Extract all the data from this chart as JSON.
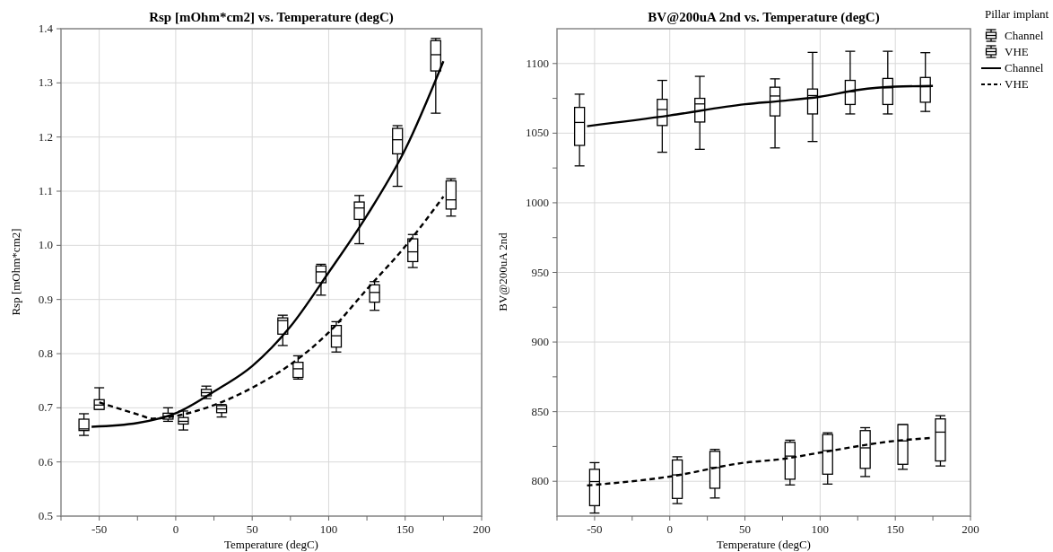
{
  "chart_data": [
    {
      "type": "box",
      "title": "Rsp [mOhm*cm2] vs. Temperature (degC)",
      "xlabel": "Temperature (degC)",
      "ylabel": "Rsp [mOhm*cm2]",
      "xlim": [
        -75,
        200
      ],
      "xticks": [
        {
          "value": -75,
          "label": null
        },
        -50,
        {
          "value": -25,
          "label": null
        },
        0,
        {
          "value": 25,
          "label": null
        },
        50,
        {
          "value": 75,
          "label": null
        },
        100,
        {
          "value": 125,
          "label": null
        },
        150,
        {
          "value": 175,
          "label": null
        },
        200
      ],
      "ylim": [
        0.5,
        1.4
      ],
      "yticks": [
        {
          "value": 0.5,
          "label": "0.5"
        },
        {
          "value": 0.6,
          "label": "0.6"
        },
        {
          "value": 0.7,
          "label": "0.7"
        },
        {
          "value": 0.8,
          "label": "0.8"
        },
        {
          "value": 0.9,
          "label": "0.9"
        },
        {
          "value": 1.0,
          "label": "1.0"
        },
        {
          "value": 1.1,
          "label": "1.1"
        },
        {
          "value": 1.2,
          "label": "1.2"
        },
        {
          "value": 1.3,
          "label": "1.3"
        },
        {
          "value": 1.4,
          "label": "1.4"
        }
      ],
      "grid": true,
      "series": [
        {
          "color": "#000000",
          "x": [
            -60,
            -5,
            20,
            70,
            95,
            120,
            145,
            170
          ],
          "boxes": [
            {
              "low": 0.649,
              "q1": 0.658,
              "median": 0.661,
              "q3": 0.679,
              "high": 0.689
            },
            {
              "low": 0.675,
              "q1": 0.679,
              "median": 0.684,
              "q3": 0.69,
              "high": 0.7
            },
            {
              "low": 0.717,
              "q1": 0.722,
              "median": 0.728,
              "q3": 0.734,
              "high": 0.74
            },
            {
              "low": 0.815,
              "q1": 0.836,
              "median": 0.861,
              "q3": 0.866,
              "high": 0.871
            },
            {
              "low": 0.908,
              "q1": 0.931,
              "median": 0.951,
              "q3": 0.962,
              "high": 0.965
            },
            {
              "low": 1.003,
              "q1": 1.048,
              "median": 1.069,
              "q3": 1.08,
              "high": 1.092
            },
            {
              "low": 1.109,
              "q1": 1.169,
              "median": 1.195,
              "q3": 1.216,
              "high": 1.221
            },
            {
              "low": 1.244,
              "q1": 1.322,
              "median": 1.352,
              "q3": 1.378,
              "high": 1.382
            }
          ]
        },
        {
          "color": "#000000",
          "x": [
            -50,
            5,
            30,
            80,
            105,
            130,
            155,
            180
          ],
          "boxes": [
            {
              "low": 0.697,
              "q1": 0.697,
              "median": 0.705,
              "q3": 0.715,
              "high": 0.737
            },
            {
              "low": 0.659,
              "q1": 0.67,
              "median": 0.675,
              "q3": 0.682,
              "high": 0.694
            },
            {
              "low": 0.683,
              "q1": 0.691,
              "median": 0.698,
              "q3": 0.704,
              "high": 0.706
            },
            {
              "low": 0.753,
              "q1": 0.756,
              "median": 0.772,
              "q3": 0.784,
              "high": 0.796
            },
            {
              "low": 0.803,
              "q1": 0.812,
              "median": 0.833,
              "q3": 0.852,
              "high": 0.859
            },
            {
              "low": 0.88,
              "q1": 0.895,
              "median": 0.913,
              "q3": 0.927,
              "high": 0.933
            },
            {
              "low": 0.959,
              "q1": 0.97,
              "median": 0.988,
              "q3": 1.012,
              "high": 1.02
            },
            {
              "low": 1.054,
              "q1": 1.067,
              "median": 1.084,
              "q3": 1.119,
              "high": 1.123
            }
          ]
        },
        {
          "type": "line",
          "color": "#000000",
          "line_style": "solid",
          "x": [
            -55,
            -25,
            0,
            25,
            50,
            75,
            100,
            125,
            150,
            175
          ],
          "values": [
            0.665,
            0.672,
            0.69,
            0.73,
            0.777,
            0.85,
            0.95,
            1.055,
            1.177,
            1.34
          ]
        },
        {
          "type": "line",
          "color": "#000000",
          "line_style": "dashed",
          "x": [
            -50,
            -25,
            -15,
            0,
            25,
            50,
            75,
            100,
            125,
            150,
            175
          ],
          "values": [
            0.71,
            0.688,
            0.68,
            0.685,
            0.705,
            0.737,
            0.78,
            0.839,
            0.919,
            0.998,
            1.09
          ]
        }
      ]
    },
    {
      "type": "box",
      "title": "BV@200uA 2nd vs. Temperature (degC)",
      "xlabel": "Temperature (degC)",
      "ylabel": "BV@200uA 2nd",
      "xlim": [
        -75,
        200
      ],
      "xticks": [
        {
          "value": -75,
          "label": null
        },
        -50,
        {
          "value": -25,
          "label": null
        },
        0,
        {
          "value": 25,
          "label": null
        },
        50,
        {
          "value": 75,
          "label": null
        },
        100,
        {
          "value": 125,
          "label": null
        },
        150,
        {
          "value": 175,
          "label": null
        },
        200
      ],
      "ylim": [
        775,
        1125
      ],
      "yticks": [
        800,
        {
          "value": 825,
          "label": null
        },
        850,
        {
          "value": 875,
          "label": null
        },
        900,
        {
          "value": 925,
          "label": null
        },
        950,
        {
          "value": 975,
          "label": null
        },
        1000,
        {
          "value": 1025,
          "label": null
        },
        1050,
        {
          "value": 1075,
          "label": null
        },
        1100
      ],
      "grid": true,
      "legend": "right",
      "legend_title": "Pillar implant",
      "series": [
        {
          "name": "Channel",
          "color": "#000000",
          "x": [
            -60,
            -5,
            20,
            70,
            95,
            120,
            145,
            170
          ],
          "boxes": [
            {
              "low": 1026.5,
              "q1": 1041.2,
              "median": 1057.7,
              "q3": 1068.5,
              "high": 1078
            },
            {
              "low": 1036.3,
              "q1": 1055.5,
              "median": 1067,
              "q3": 1074.3,
              "high": 1087.9
            },
            {
              "low": 1038.4,
              "q1": 1058,
              "median": 1071,
              "q3": 1075,
              "high": 1090.8
            },
            {
              "low": 1039.4,
              "q1": 1062.4,
              "median": 1076.7,
              "q3": 1083,
              "high": 1089
            },
            {
              "low": 1044,
              "q1": 1063.8,
              "median": 1077,
              "q3": 1081.7,
              "high": 1108
            },
            {
              "low": 1063.8,
              "q1": 1070.6,
              "median": 1079.8,
              "q3": 1087.9,
              "high": 1108.8
            },
            {
              "low": 1063.8,
              "q1": 1070.6,
              "median": 1082.6,
              "q3": 1089.3,
              "high": 1108.8
            },
            {
              "low": 1065.6,
              "q1": 1072.2,
              "median": 1083.4,
              "q3": 1090,
              "high": 1107.8
            }
          ]
        },
        {
          "name": "VHE",
          "color": "#000000",
          "x": [
            -50,
            5,
            30,
            80,
            105,
            130,
            155,
            180
          ],
          "boxes": [
            {
              "low": 777.2,
              "q1": 782.5,
              "median": 799.8,
              "q3": 808.6,
              "high": 813.4
            },
            {
              "low": 784,
              "q1": 787.7,
              "median": 804.6,
              "q3": 815.3,
              "high": 817.6
            },
            {
              "low": 788,
              "q1": 795,
              "median": 809.8,
              "q3": 821.5,
              "high": 822.9
            },
            {
              "low": 797.4,
              "q1": 801.5,
              "median": 818.1,
              "q3": 828,
              "high": 829.5
            },
            {
              "low": 798,
              "q1": 805.1,
              "median": 822,
              "q3": 833.6,
              "high": 834.8
            },
            {
              "low": 803.4,
              "q1": 809.3,
              "median": 824,
              "q3": 836.4,
              "high": 838.5
            },
            {
              "low": 808.6,
              "q1": 812.2,
              "median": 829,
              "q3": 840.7,
              "high": 840.7
            },
            {
              "low": 811,
              "q1": 814.6,
              "median": 835.3,
              "q3": 844.8,
              "high": 847.1
            }
          ]
        },
        {
          "name": "Channel",
          "type": "line",
          "color": "#000000",
          "line_style": "solid",
          "x": [
            -55,
            0,
            50,
            75,
            100,
            125,
            150,
            175
          ],
          "values": [
            1055,
            1062.7,
            1070.8,
            1073.2,
            1076.2,
            1081,
            1083.4,
            1083.9
          ]
        },
        {
          "name": "VHE",
          "type": "line",
          "color": "#000000",
          "line_style": "dashed",
          "x": [
            -55,
            0,
            50,
            75,
            100,
            150,
            175
          ],
          "values": [
            797,
            803.4,
            813.4,
            816,
            820.6,
            829,
            831.2
          ]
        }
      ]
    }
  ]
}
